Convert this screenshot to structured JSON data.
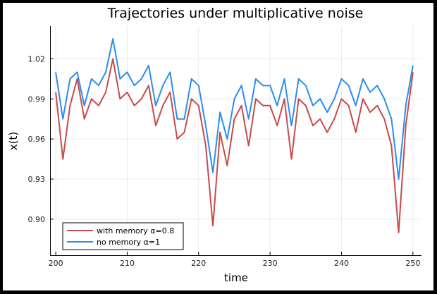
{
  "chart_data": {
    "type": "line",
    "title": "Trajectories under multiplicative noise",
    "xlabel": "time",
    "ylabel": "x(t)",
    "xlim": [
      199.2,
      251.2
    ],
    "ylim": [
      0.873,
      1.0445
    ],
    "xticks": [
      200,
      210,
      220,
      230,
      240,
      250
    ],
    "xtick_labels": [
      "200",
      "210",
      "220",
      "230",
      "240",
      "250"
    ],
    "yticks": [
      0.9,
      0.93,
      0.96,
      0.99,
      1.02
    ],
    "ytick_labels": [
      "0.90",
      "0.93",
      "0.96",
      "0.99",
      "1.02"
    ],
    "grid": true,
    "legend_position": "bottom-left",
    "x": [
      200,
      201,
      202,
      203,
      204,
      205,
      206,
      207,
      208,
      209,
      210,
      211,
      212,
      213,
      214,
      215,
      216,
      217,
      218,
      219,
      220,
      221,
      222,
      223,
      224,
      225,
      226,
      227,
      228,
      229,
      230,
      231,
      232,
      233,
      234,
      235,
      236,
      237,
      238,
      239,
      240,
      241,
      242,
      243,
      244,
      245,
      246,
      247,
      248,
      249,
      250
    ],
    "series": [
      {
        "name": "with memory α=0.8",
        "color": "#c94a4a",
        "values": [
          0.995,
          0.945,
          0.985,
          1.005,
          0.975,
          0.99,
          0.985,
          0.995,
          1.02,
          0.99,
          0.995,
          0.985,
          0.99,
          1.0,
          0.97,
          0.985,
          0.995,
          0.96,
          0.965,
          0.99,
          0.985,
          0.955,
          0.895,
          0.965,
          0.94,
          0.975,
          0.985,
          0.955,
          0.99,
          0.985,
          0.985,
          0.97,
          0.99,
          0.945,
          0.99,
          0.985,
          0.97,
          0.975,
          0.965,
          0.975,
          0.99,
          0.985,
          0.965,
          0.99,
          0.98,
          0.985,
          0.975,
          0.955,
          0.89,
          0.97,
          1.01
        ]
      },
      {
        "name": "no memory α=1",
        "color": "#2b8df0",
        "values": [
          1.01,
          0.975,
          1.005,
          1.01,
          0.985,
          1.005,
          1.0,
          1.01,
          1.035,
          1.005,
          1.01,
          1.0,
          1.005,
          1.015,
          0.985,
          1.0,
          1.01,
          0.975,
          0.975,
          1.005,
          1.0,
          0.97,
          0.935,
          0.98,
          0.96,
          0.99,
          1.0,
          0.975,
          1.005,
          1.0,
          1.0,
          0.985,
          1.005,
          0.97,
          1.005,
          1.0,
          0.985,
          0.99,
          0.98,
          0.99,
          1.005,
          1.0,
          0.985,
          1.005,
          0.995,
          1.0,
          0.99,
          0.975,
          0.93,
          0.985,
          1.015
        ]
      }
    ]
  }
}
